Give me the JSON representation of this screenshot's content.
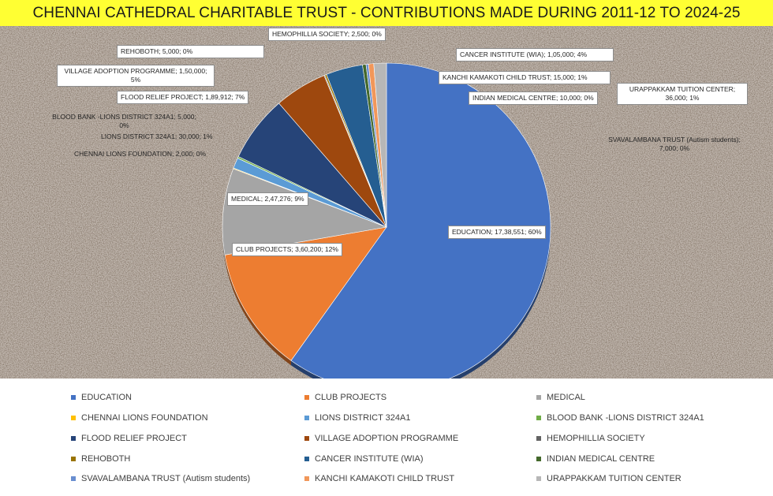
{
  "title": "CHENNAI CATHEDRAL CHARITABLE TRUST - CONTRIBUTIONS MADE DURING 2011-12 TO 2024-25",
  "chart_data": {
    "type": "pie",
    "title": "CHENNAI CATHEDRAL CHARITABLE TRUST - CONTRIBUTIONS MADE DURING 2011-12 TO 2024-25",
    "legend_position": "bottom",
    "slices": [
      {
        "name": "EDUCATION",
        "value": 1738551,
        "value_label": "17,38,551",
        "percent_label": "60%",
        "color": "#4472c4"
      },
      {
        "name": "CLUB PROJECTS",
        "value": 360200,
        "value_label": "3,60,200",
        "percent_label": "12%",
        "color": "#ed7d31"
      },
      {
        "name": "MEDICAL",
        "value": 247276,
        "value_label": "2,47,276",
        "percent_label": "9%",
        "color": "#a5a5a5"
      },
      {
        "name": "CHENNAI LIONS FOUNDATION",
        "value": 2000,
        "value_label": "2,000",
        "percent_label": "0%",
        "color": "#ffc000"
      },
      {
        "name": "LIONS DISTRICT 324A1",
        "value": 30000,
        "value_label": "30,000",
        "percent_label": "1%",
        "color": "#5b9bd5"
      },
      {
        "name": "BLOOD BANK -LIONS DISTRICT 324A1",
        "value": 5000,
        "value_label": "5,000",
        "percent_label": "0%",
        "color": "#70ad47"
      },
      {
        "name": "FLOOD RELIEF PROJECT",
        "value": 189912,
        "value_label": "1,89,912",
        "percent_label": "7%",
        "color": "#264478"
      },
      {
        "name": "VILLAGE ADOPTION PROGRAMME",
        "value": 150000,
        "value_label": "1,50,000",
        "percent_label": "5%",
        "color": "#9e480e"
      },
      {
        "name": "HEMOPHILLIA SOCIETY",
        "value": 2500,
        "value_label": "2,500",
        "percent_label": "0%",
        "color": "#636363"
      },
      {
        "name": "REHOBOTH",
        "value": 5000,
        "value_label": "5,000",
        "percent_label": "0%",
        "color": "#997300"
      },
      {
        "name": "CANCER INSTITUTE (WIA)",
        "value": 105000,
        "value_label": "1,05,000",
        "percent_label": "4%",
        "color": "#255e91"
      },
      {
        "name": "INDIAN MEDICAL CENTRE",
        "value": 10000,
        "value_label": "10,000",
        "percent_label": "0%",
        "color": "#43682b"
      },
      {
        "name": "SVAVALAMBANA TRUST (Autism students)",
        "value": 7000,
        "value_label": "7,000",
        "percent_label": "0%",
        "color": "#698ed0"
      },
      {
        "name": "KANCHI KAMAKOTI CHILD TRUST",
        "value": 15000,
        "value_label": "15,000",
        "percent_label": "1%",
        "color": "#f1975a"
      },
      {
        "name": "URAPPAKKAM TUITION CENTER",
        "value": 36000,
        "value_label": "36,000",
        "percent_label": "1%",
        "color": "#b7b7b7"
      }
    ]
  }
}
